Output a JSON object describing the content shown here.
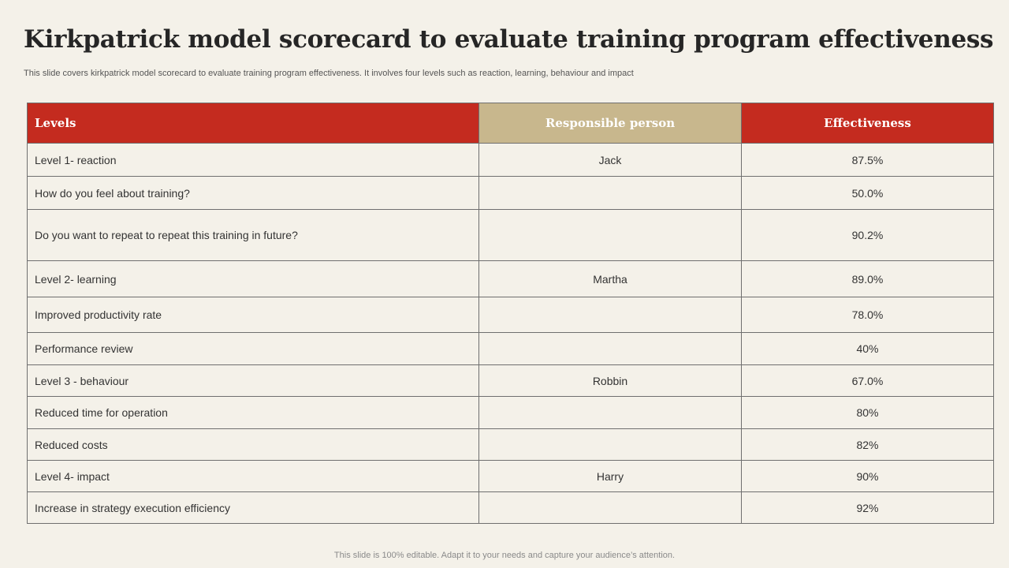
{
  "slide": {
    "title": "Kirkpatrick model scorecard to evaluate training program effectiveness",
    "subtitle": "This slide covers kirkpatrick model scorecard to evaluate training program effectiveness. It involves four levels such as reaction, learning, behaviour and impact",
    "footer": "This slide is 100% editable. Adapt it to your needs and capture your audience’s attention."
  },
  "table": {
    "headers": {
      "levels": "Levels",
      "person": "Responsible person",
      "effectiveness": "Effectiveness"
    },
    "rows": [
      {
        "level": "Level 1- reaction",
        "person": "Jack",
        "effectiveness": "87.5%"
      },
      {
        "level": "How do you feel about training?",
        "person": "",
        "effectiveness": "50.0%"
      },
      {
        "level": "Do you want to repeat to repeat this training in future?",
        "person": "",
        "effectiveness": "90.2%"
      },
      {
        "level": "Level 2- learning",
        "person": "Martha",
        "effectiveness": "89.0%"
      },
      {
        "level": "Improved productivity rate",
        "person": "",
        "effectiveness": "78.0%"
      },
      {
        "level": "Performance review",
        "person": "",
        "effectiveness": "40%"
      },
      {
        "level": "Level 3 - behaviour",
        "person": "Robbin",
        "effectiveness": "67.0%"
      },
      {
        "level": "Reduced time for operation",
        "person": "",
        "effectiveness": "80%"
      },
      {
        "level": "Reduced costs",
        "person": "",
        "effectiveness": "82%"
      },
      {
        "level": "Level 4- impact",
        "person": "Harry",
        "effectiveness": "90%"
      },
      {
        "level": "Increase in strategy execution efficiency",
        "person": "",
        "effectiveness": "92%"
      }
    ]
  },
  "colors": {
    "background": "#f4f1e9",
    "header_red": "#c42b1f",
    "header_tan": "#c8b78d"
  }
}
